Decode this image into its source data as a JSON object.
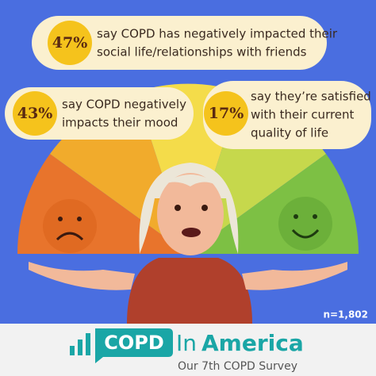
{
  "stats": [
    {
      "percent": "47%",
      "text": [
        "say COPD has negatively impacted their",
        "social life/relationships with friends"
      ]
    },
    {
      "percent": "43%",
      "text": [
        "say COPD negatively",
        "impacts their mood"
      ]
    },
    {
      "percent": "17%",
      "text": [
        "say they’re satisfied",
        "with their current",
        "quality of life"
      ]
    }
  ],
  "sample_size": "n=1,802",
  "logo": {
    "box": "COPD",
    "in": "In",
    "america": "America",
    "subtitle": "Our 7th COPD Survey"
  }
}
